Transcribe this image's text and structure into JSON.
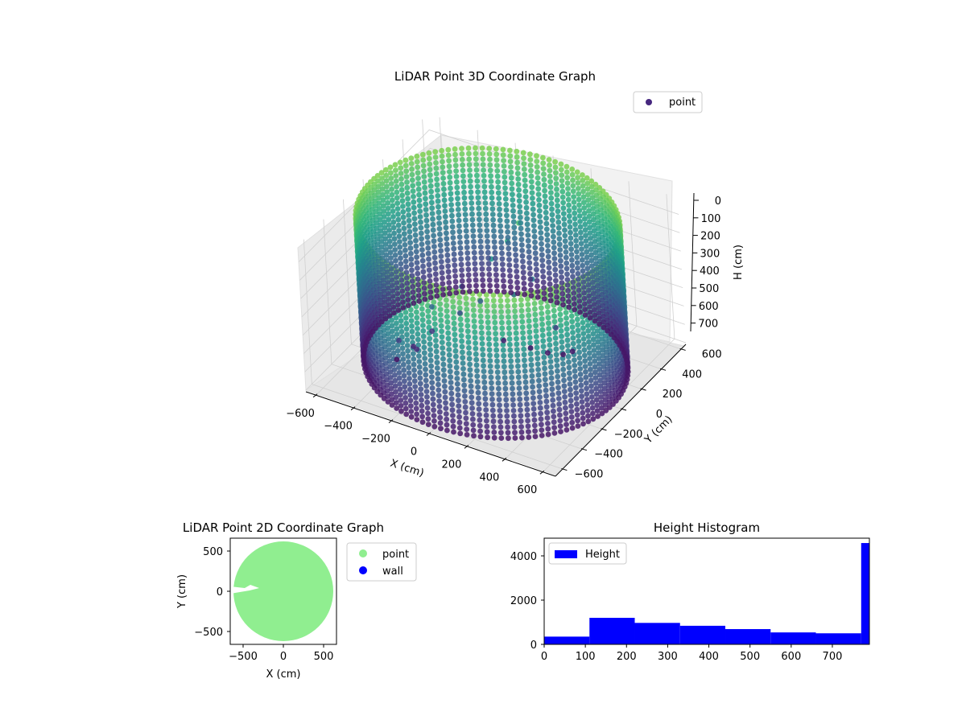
{
  "figure": {},
  "chart_data": [
    {
      "type": "scatter",
      "projection": "3d",
      "title": "LiDAR Point 3D Coordinate Graph",
      "xlabel": "X (cm)",
      "ylabel": "Y (cm)",
      "zlabel": "H (cm)",
      "x_ticks": [
        "−600",
        "−400",
        "−200",
        "0",
        "200",
        "400",
        "600"
      ],
      "y_ticks": [
        "−600",
        "−400",
        "−200",
        "0",
        "200",
        "400",
        "600"
      ],
      "z_ticks": [
        "0",
        "100",
        "200",
        "300",
        "400",
        "500",
        "600",
        "700"
      ],
      "xlim": [
        -660,
        660
      ],
      "ylim": [
        -660,
        660
      ],
      "zlim": [
        790,
        0
      ],
      "z_inverted": true,
      "colormap": "viridis",
      "legend": {
        "position": "top-right",
        "entries": [
          {
            "name": "point",
            "color": "#46277f"
          }
        ]
      },
      "grid": true,
      "shape": "cylindrical wall of points",
      "wall_radius": 620,
      "wall_height_range": [
        0,
        790
      ]
    },
    {
      "type": "scatter",
      "title": "LiDAR Point 2D Coordinate Graph",
      "xlabel": "X (cm)",
      "ylabel": "Y (cm)",
      "x_ticks": [
        "−500",
        "0",
        "500"
      ],
      "y_ticks": [
        "500",
        "0",
        "−500"
      ],
      "xlim": [
        -660,
        660
      ],
      "ylim": [
        -660,
        660
      ],
      "legend": {
        "position": "outside-right",
        "entries": [
          {
            "name": "point",
            "color": "#90ee90"
          },
          {
            "name": "wall",
            "color": "#0000ff"
          }
        ]
      },
      "shape": "filled disk of points",
      "disk_radius": 620
    },
    {
      "type": "bar",
      "subtype": "histogram",
      "title": "Height Histogram",
      "legend": {
        "position": "top-left",
        "entries": [
          {
            "name": "Height",
            "color": "#0000ff"
          }
        ]
      },
      "x_ticks": [
        "0",
        "100",
        "200",
        "300",
        "400",
        "500",
        "600",
        "700"
      ],
      "y_ticks": [
        "0",
        "2000",
        "4000"
      ],
      "xlim": [
        0,
        790
      ],
      "ylim": [
        0,
        4800
      ],
      "bin_edges": [
        0,
        110,
        220,
        330,
        440,
        550,
        660,
        770,
        790
      ],
      "values": [
        350,
        1200,
        970,
        840,
        690,
        540,
        500,
        4580
      ],
      "color": "#0000ff"
    }
  ]
}
